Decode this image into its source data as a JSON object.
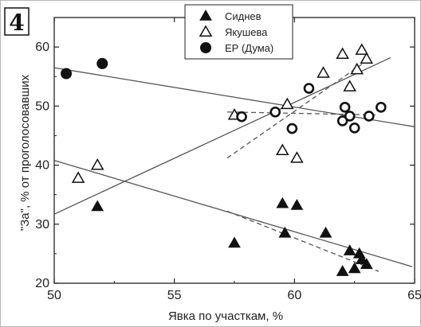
{
  "panel_label": "4",
  "chart_data": {
    "type": "scatter",
    "title": "",
    "xlabel": "Явка по участкам, %",
    "ylabel": "\"За\", % от проголосовавших",
    "xlim": [
      50,
      65
    ],
    "ylim": [
      20,
      65
    ],
    "x_ticks": [
      "50",
      "55",
      "60",
      "65"
    ],
    "y_ticks": [
      "20",
      "30",
      "40",
      "50",
      "60"
    ],
    "grid": false,
    "legend_position": "top-center",
    "series": [
      {
        "name": "Сиднев",
        "marker": "filled-triangle",
        "points": [
          [
            51.8,
            33
          ],
          [
            57.5,
            26.8
          ],
          [
            59.6,
            28.5
          ],
          [
            61.3,
            28.5
          ],
          [
            59.5,
            33.5
          ],
          [
            60.1,
            33.2
          ],
          [
            62.0,
            22
          ],
          [
            62.3,
            25.5
          ],
          [
            62.5,
            22.5
          ],
          [
            62.7,
            25
          ],
          [
            62.8,
            24
          ],
          [
            63.0,
            23.2
          ]
        ]
      },
      {
        "name": "Якушева",
        "marker": "open-triangle",
        "points": [
          [
            51.0,
            37.8
          ],
          [
            51.8,
            40
          ],
          [
            57.5,
            48.5
          ],
          [
            59.5,
            42.5
          ],
          [
            59.7,
            50.3
          ],
          [
            60.1,
            41.2
          ],
          [
            61.2,
            55.6
          ],
          [
            62.0,
            58.8
          ],
          [
            62.3,
            53.3
          ],
          [
            62.6,
            56.2
          ],
          [
            62.8,
            59.5
          ],
          [
            63.0,
            58
          ]
        ]
      },
      {
        "name": "ЕР (Дума)",
        "marker": "filled-circle",
        "points": [
          [
            50.5,
            55.5
          ],
          [
            52.0,
            57.2
          ]
        ]
      },
      {
        "marker": "open-circle",
        "points": [
          [
            57.8,
            48.2
          ],
          [
            59.2,
            49.0
          ],
          [
            59.9,
            46.2
          ],
          [
            60.6,
            53.0
          ],
          [
            62.0,
            47.5
          ],
          [
            62.1,
            49.8
          ],
          [
            62.3,
            48.3
          ],
          [
            62.5,
            46.3
          ],
          [
            63.1,
            48.3
          ],
          [
            63.6,
            49.8
          ]
        ]
      }
    ],
    "trend_lines": [
      {
        "style": "solid",
        "points": [
          [
            50,
            31.7
          ],
          [
            64.0,
            58.2
          ]
        ]
      },
      {
        "style": "solid",
        "points": [
          [
            50,
            40.8
          ],
          [
            64.9,
            22.8
          ]
        ]
      },
      {
        "style": "solid",
        "points": [
          [
            50,
            56.5
          ],
          [
            65,
            46.5
          ]
        ]
      },
      {
        "style": "dashed",
        "points": [
          [
            57.2,
            41.2
          ],
          [
            63.2,
            58.2
          ]
        ]
      },
      {
        "style": "dashed",
        "points": [
          [
            57.2,
            49.0
          ],
          [
            63.5,
            48.5
          ]
        ]
      },
      {
        "style": "dashed",
        "points": [
          [
            57.2,
            32.2
          ],
          [
            63.5,
            22.0
          ]
        ]
      }
    ]
  }
}
